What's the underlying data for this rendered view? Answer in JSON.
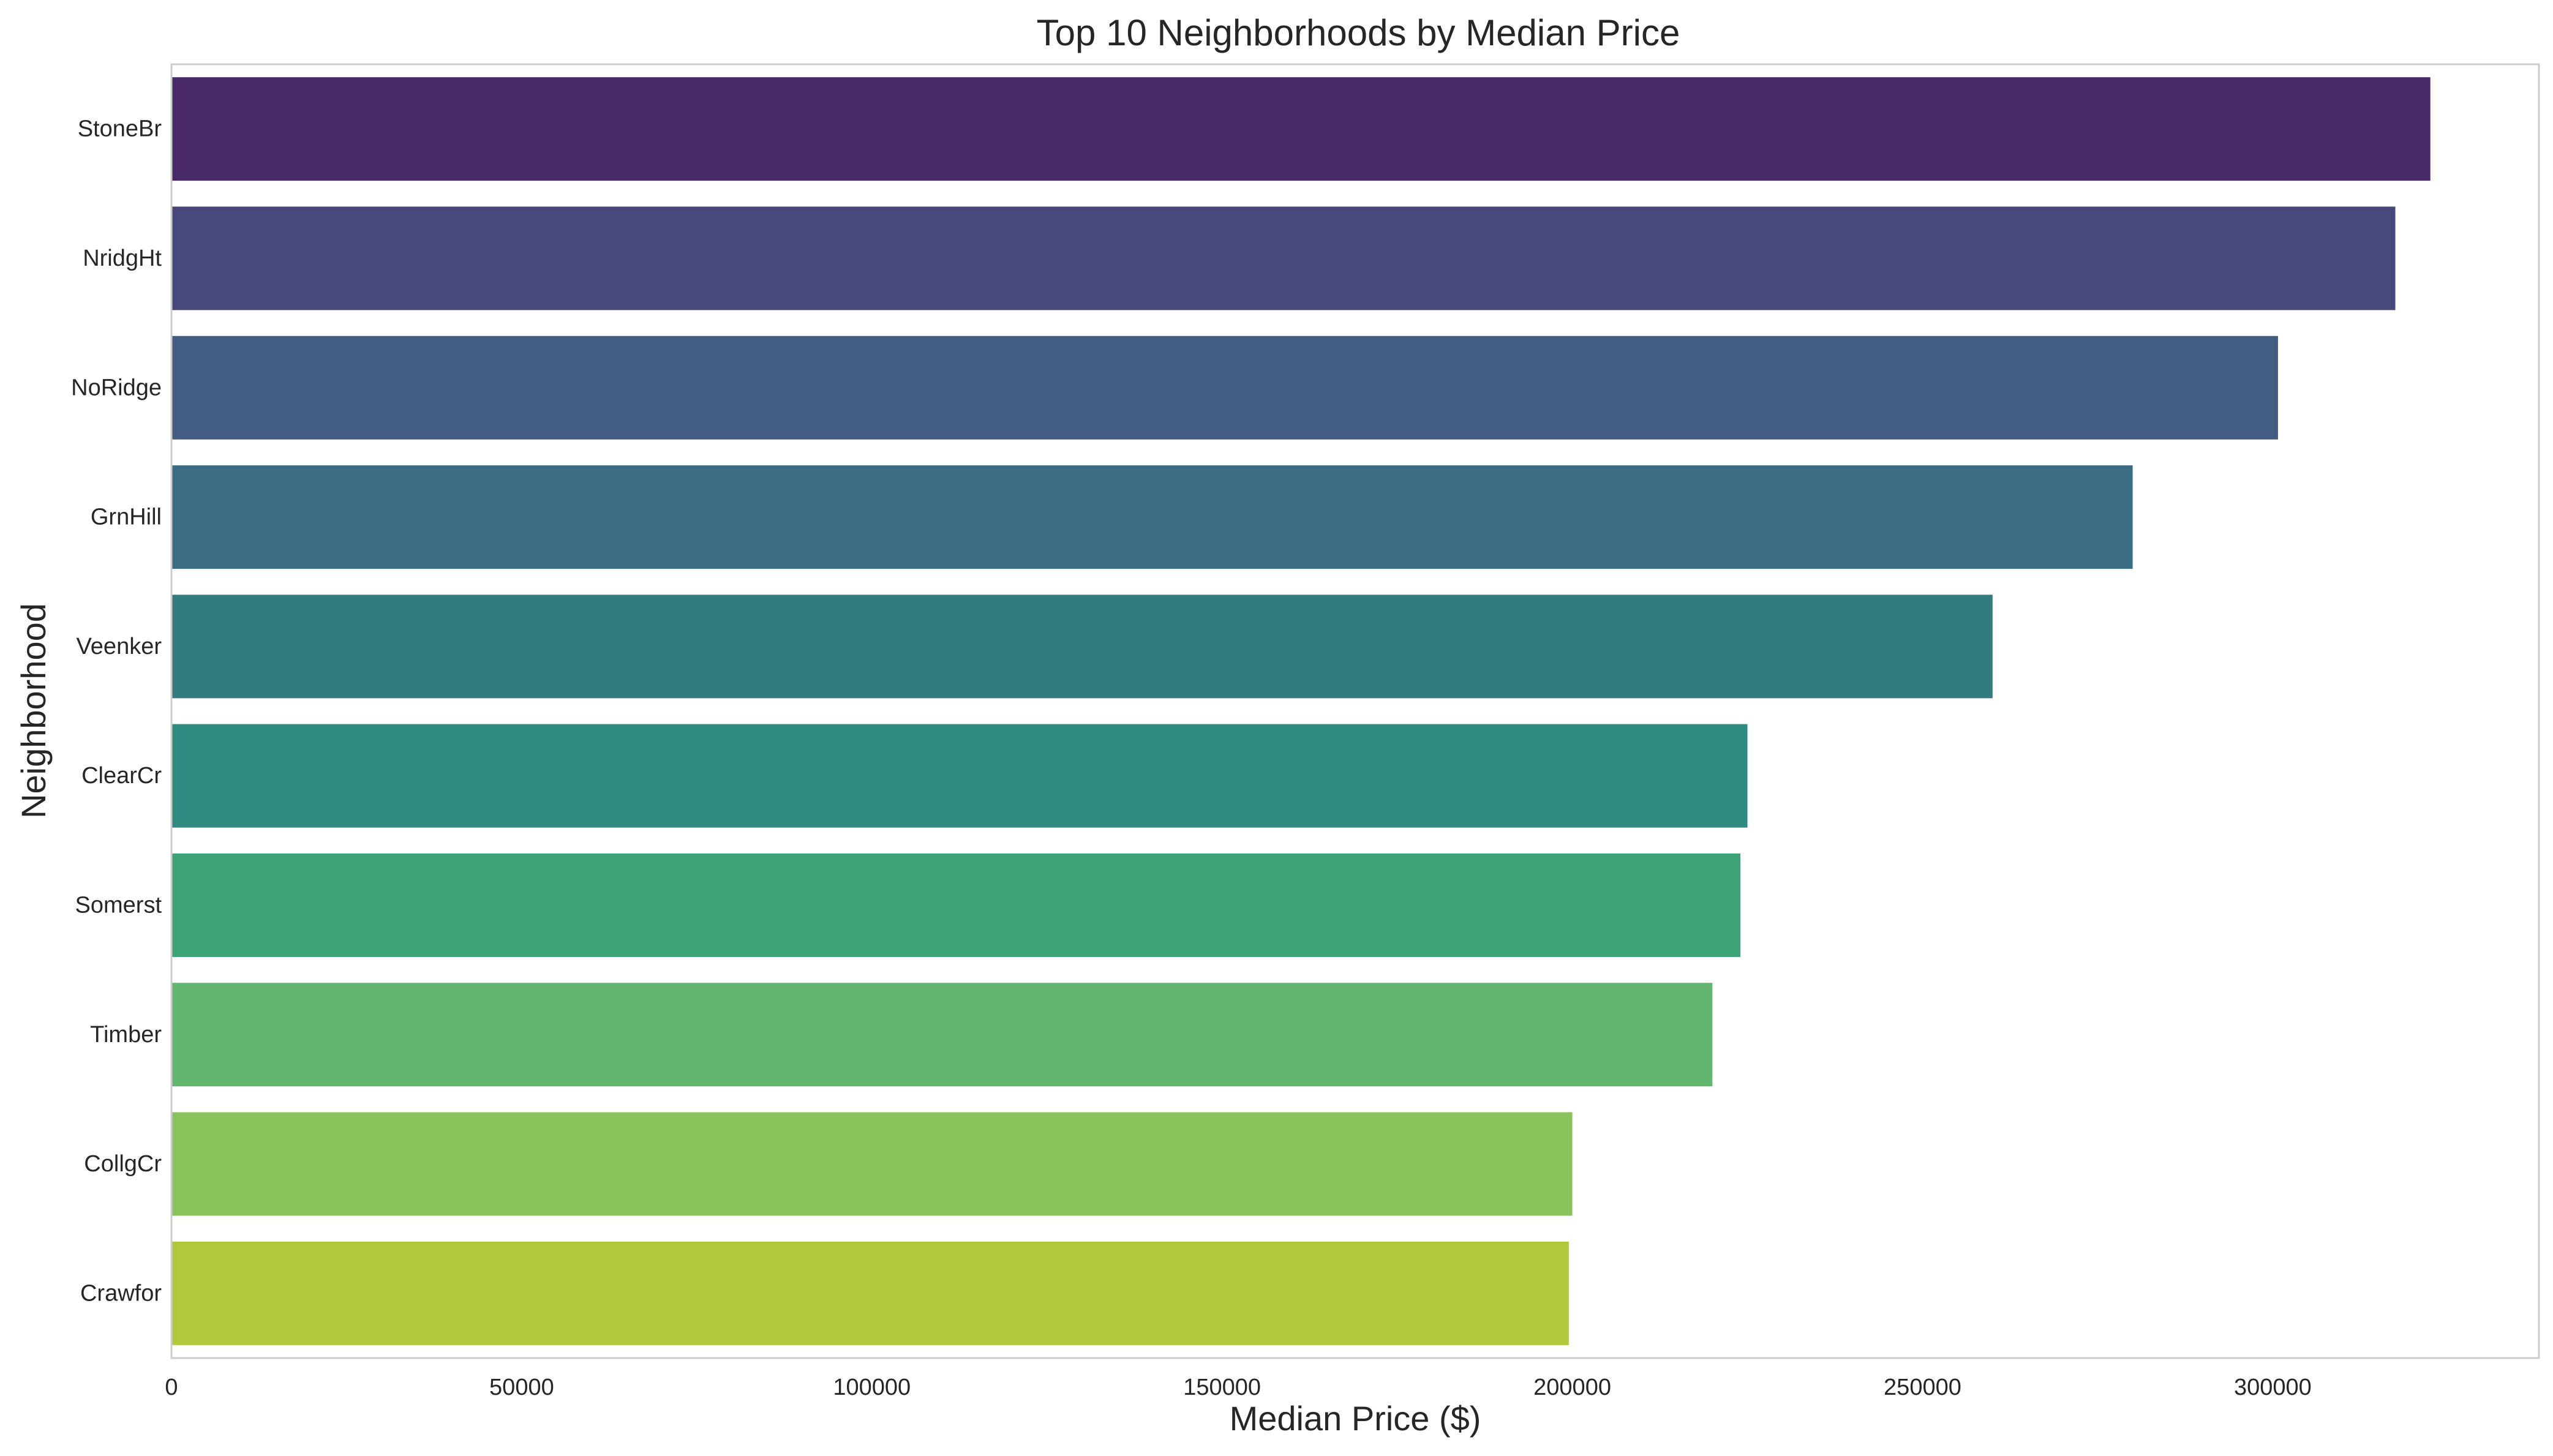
{
  "chart_data": {
    "type": "bar",
    "orientation": "horizontal",
    "title": "Top 10 Neighborhoods by Median Price",
    "xlabel": "Median Price ($)",
    "ylabel": "Neighborhood",
    "categories": [
      "StoneBr",
      "NridgHt",
      "NoRidge",
      "GrnHill",
      "Veenker",
      "ClearCr",
      "Somerst",
      "Timber",
      "CollgCr",
      "Crawfor"
    ],
    "values": [
      322500,
      317500,
      300750,
      280000,
      260000,
      225000,
      224000,
      220000,
      200000,
      199500
    ],
    "colors": [
      "#482a69",
      "#48487c",
      "#435d82",
      "#3b6c82",
      "#327c80",
      "#2f8b7f",
      "#3ea277",
      "#62b66d",
      "#88c45b",
      "#b1c83b"
    ],
    "xlim": [
      0,
      338000
    ],
    "xticks": [
      0,
      50000,
      100000,
      150000,
      200000,
      250000,
      300000
    ],
    "xtick_labels": [
      "0",
      "50000",
      "100000",
      "150000",
      "200000",
      "250000",
      "300000"
    ],
    "grid": false,
    "frame_color": "#cccccc"
  }
}
